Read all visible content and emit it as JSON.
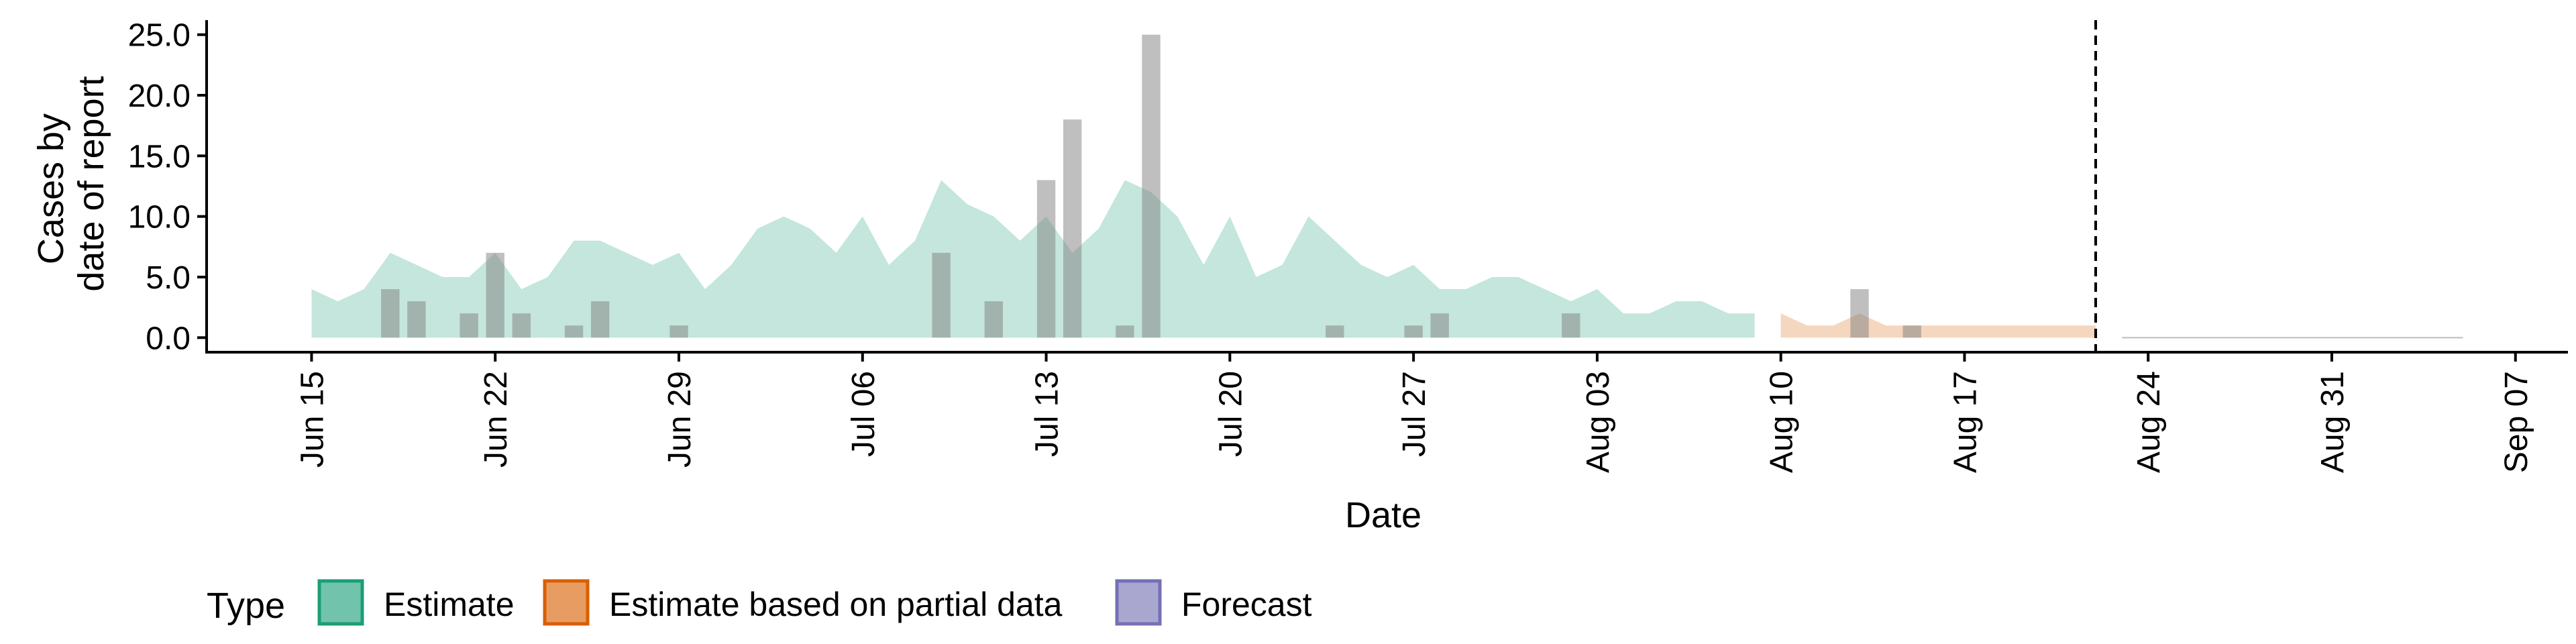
{
  "chart_data": {
    "type": "bar",
    "title": "",
    "xlabel": "Date",
    "ylabel": [
      "Cases by",
      "date of report"
    ],
    "ylim": [
      -1.2,
      26.2
    ],
    "y_ticks": [
      0,
      5,
      10,
      15,
      20,
      25
    ],
    "y_tick_labels": [
      "0.0",
      "5.0",
      "10.0",
      "15.0",
      "20.0",
      "25.0"
    ],
    "x_range": [
      "2020-06-11",
      "2020-09-09"
    ],
    "x_ticks": [
      "2020-06-15",
      "2020-06-22",
      "2020-06-29",
      "2020-07-06",
      "2020-07-13",
      "2020-07-20",
      "2020-07-27",
      "2020-08-03",
      "2020-08-10",
      "2020-08-17",
      "2020-08-24",
      "2020-08-31",
      "2020-09-07"
    ],
    "x_tick_labels": [
      "Jun 15",
      "Jun 22",
      "Jun 29",
      "Jul 06",
      "Jul 13",
      "Jul 20",
      "Jul 27",
      "Aug 03",
      "Aug 10",
      "Aug 17",
      "Aug 24",
      "Aug 31",
      "Sep 07"
    ],
    "vline_date": "2020-08-22",
    "reported_cases": [
      {
        "date": "2020-06-18",
        "value": 4
      },
      {
        "date": "2020-06-19",
        "value": 3
      },
      {
        "date": "2020-06-21",
        "value": 2
      },
      {
        "date": "2020-06-22",
        "value": 7
      },
      {
        "date": "2020-06-23",
        "value": 2
      },
      {
        "date": "2020-06-25",
        "value": 1
      },
      {
        "date": "2020-06-26",
        "value": 3
      },
      {
        "date": "2020-06-29",
        "value": 1
      },
      {
        "date": "2020-07-09",
        "value": 7
      },
      {
        "date": "2020-07-11",
        "value": 3
      },
      {
        "date": "2020-07-13",
        "value": 13
      },
      {
        "date": "2020-07-14",
        "value": 18
      },
      {
        "date": "2020-07-16",
        "value": 1
      },
      {
        "date": "2020-07-17",
        "value": 25
      },
      {
        "date": "2020-07-24",
        "value": 1
      },
      {
        "date": "2020-07-27",
        "value": 1
      },
      {
        "date": "2020-07-28",
        "value": 2
      },
      {
        "date": "2020-08-02",
        "value": 2
      },
      {
        "date": "2020-08-13",
        "value": 4
      },
      {
        "date": "2020-08-15",
        "value": 1
      }
    ],
    "series": [
      {
        "name": "Estimate",
        "color": "#1B9E77",
        "x": [
          "2020-06-15",
          "2020-06-16",
          "2020-06-17",
          "2020-06-18",
          "2020-06-19",
          "2020-06-20",
          "2020-06-21",
          "2020-06-22",
          "2020-06-23",
          "2020-06-24",
          "2020-06-25",
          "2020-06-26",
          "2020-06-27",
          "2020-06-28",
          "2020-06-29",
          "2020-06-30",
          "2020-07-01",
          "2020-07-02",
          "2020-07-03",
          "2020-07-04",
          "2020-07-05",
          "2020-07-06",
          "2020-07-07",
          "2020-07-08",
          "2020-07-09",
          "2020-07-10",
          "2020-07-11",
          "2020-07-12",
          "2020-07-13",
          "2020-07-14",
          "2020-07-15",
          "2020-07-16",
          "2020-07-17",
          "2020-07-18",
          "2020-07-19",
          "2020-07-20",
          "2020-07-21",
          "2020-07-22",
          "2020-07-23",
          "2020-07-24",
          "2020-07-25",
          "2020-07-26",
          "2020-07-27",
          "2020-07-28",
          "2020-07-29",
          "2020-07-30",
          "2020-07-31",
          "2020-08-01",
          "2020-08-02",
          "2020-08-03",
          "2020-08-04",
          "2020-08-05",
          "2020-08-06",
          "2020-08-07",
          "2020-08-08",
          "2020-08-09"
        ],
        "values": [
          4,
          3,
          4,
          7,
          6,
          5,
          5,
          7,
          4,
          5,
          8,
          8,
          7,
          6,
          7,
          4,
          6,
          9,
          10,
          9,
          7,
          10,
          6,
          8,
          13,
          11,
          10,
          8,
          10,
          7,
          9,
          13,
          12,
          10,
          6,
          10,
          5,
          6,
          10,
          8,
          6,
          5,
          6,
          4,
          4,
          5,
          5,
          4,
          3,
          4,
          2,
          2,
          3,
          3,
          2,
          2
        ]
      },
      {
        "name": "Estimate based on partial data",
        "color": "#D95F02",
        "x": [
          "2020-08-10",
          "2020-08-11",
          "2020-08-12",
          "2020-08-13",
          "2020-08-14",
          "2020-08-15",
          "2020-08-16",
          "2020-08-17",
          "2020-08-18",
          "2020-08-19",
          "2020-08-20",
          "2020-08-21",
          "2020-08-22"
        ],
        "values": [
          2,
          1,
          1,
          2,
          1,
          1,
          1,
          1,
          1,
          1,
          1,
          1,
          1
        ]
      },
      {
        "name": "Forecast",
        "color": "#7570B3",
        "x": [
          "2020-08-23",
          "2020-08-24",
          "2020-08-25",
          "2020-08-26",
          "2020-08-27",
          "2020-08-28",
          "2020-08-29",
          "2020-08-30",
          "2020-08-31",
          "2020-09-01",
          "2020-09-02",
          "2020-09-03",
          "2020-09-04",
          "2020-09-05"
        ],
        "values": [
          0,
          0,
          0,
          0,
          0,
          0,
          0,
          0,
          0,
          0,
          0,
          0,
          0,
          0
        ]
      }
    ],
    "legend": {
      "position": "bottom",
      "title": "Type",
      "items": [
        "Estimate",
        "Estimate based on partial data",
        "Forecast"
      ]
    },
    "grid": false
  },
  "colors": {
    "estimate_fill": "#1B9E77",
    "partial_fill": "#D95F02",
    "forecast_fill": "#7570B3",
    "bar_fill": "#7F7F7F"
  }
}
